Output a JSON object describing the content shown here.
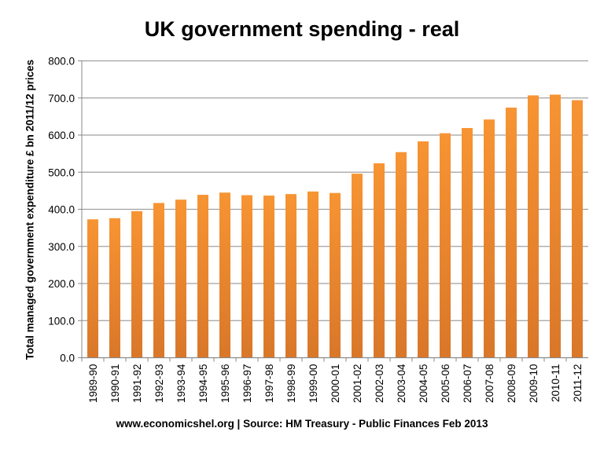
{
  "chart_data": {
    "type": "bar",
    "title": "UK government spending - real",
    "ylabel": "Total managed government expenditure £ bn 2011/12 prices",
    "xlabel": "",
    "source": "www.economicshel.org | Source: HM Treasury - Public Finances Feb 2013",
    "categories": [
      "1989-90",
      "1990-91",
      "1991-92",
      "1992-93",
      "1993-94",
      "1994-95",
      "1995-96",
      "1996-97",
      "1997-98",
      "1998-99",
      "1999-00",
      "2000-01",
      "2001-02",
      "2002-03",
      "2003-04",
      "2004-05",
      "2005-06",
      "2006-07",
      "2007-08",
      "2008-09",
      "2009-10",
      "2010-11",
      "2011-12"
    ],
    "values": [
      373,
      376,
      395,
      417,
      426,
      439,
      445,
      438,
      437,
      441,
      448,
      444,
      496,
      524,
      554,
      583,
      605,
      619,
      642,
      674,
      707,
      709,
      694
    ],
    "ylim": [
      0,
      800
    ],
    "yticks": [
      "0.0",
      "100.0",
      "200.0",
      "300.0",
      "400.0",
      "500.0",
      "600.0",
      "700.0",
      "800.0"
    ],
    "grid": true,
    "legend": "none",
    "bar_color": "#F79433",
    "bar_color_bottom": "#D9772A"
  }
}
